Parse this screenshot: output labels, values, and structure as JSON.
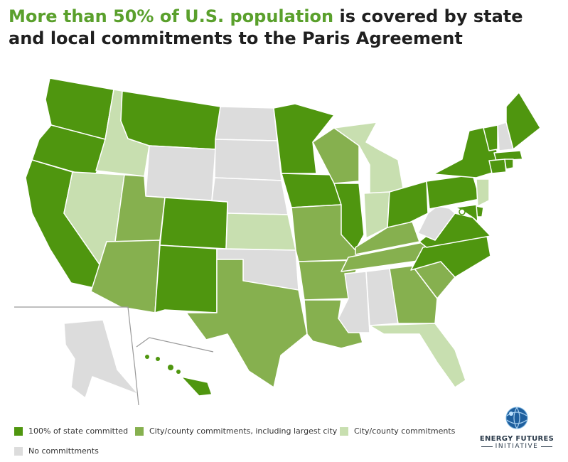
{
  "title": {
    "highlight": "More than 50% of U.S. population",
    "rest": " is covered by state and local commitments to the Paris Agreement"
  },
  "colors": {
    "full": "#4f960f",
    "largest": "#86b04f",
    "city": "#c8dfb0",
    "none": "#dcdcdc"
  },
  "legend": [
    {
      "key": "full",
      "label": "100% of state committed"
    },
    {
      "key": "largest",
      "label": "City/county commitments, including largest city"
    },
    {
      "key": "city",
      "label": "City/county commitments"
    },
    {
      "key": "none",
      "label": "No committments"
    }
  ],
  "logo": {
    "line1": "ENERGY FUTURES",
    "line2": "INITIATIVE"
  },
  "states": {
    "WA": "full",
    "OR": "full",
    "CA": "full",
    "ID": "city",
    "NV": "city",
    "MT": "full",
    "WY": "none",
    "UT": "largest",
    "AZ": "largest",
    "CO": "full",
    "NM": "full",
    "ND": "none",
    "SD": "none",
    "NE": "none",
    "KS": "city",
    "OK": "none",
    "TX": "largest",
    "MN": "full",
    "IA": "full",
    "MO": "largest",
    "AR": "largest",
    "LA": "largest",
    "WI": "largest",
    "IL": "full",
    "MI": "city",
    "IN": "city",
    "OH": "full",
    "KY": "largest",
    "TN": "largest",
    "MS": "none",
    "AL": "none",
    "GA": "largest",
    "FL": "city",
    "SC": "largest",
    "NC": "full",
    "VA": "full",
    "WV": "none",
    "PA": "full",
    "NY": "full",
    "VT": "full",
    "NH": "none",
    "ME": "full",
    "MA": "full",
    "CT": "full",
    "RI": "full",
    "NJ": "city",
    "DE": "full",
    "MD": "full",
    "AK": "none",
    "HI": "full"
  }
}
